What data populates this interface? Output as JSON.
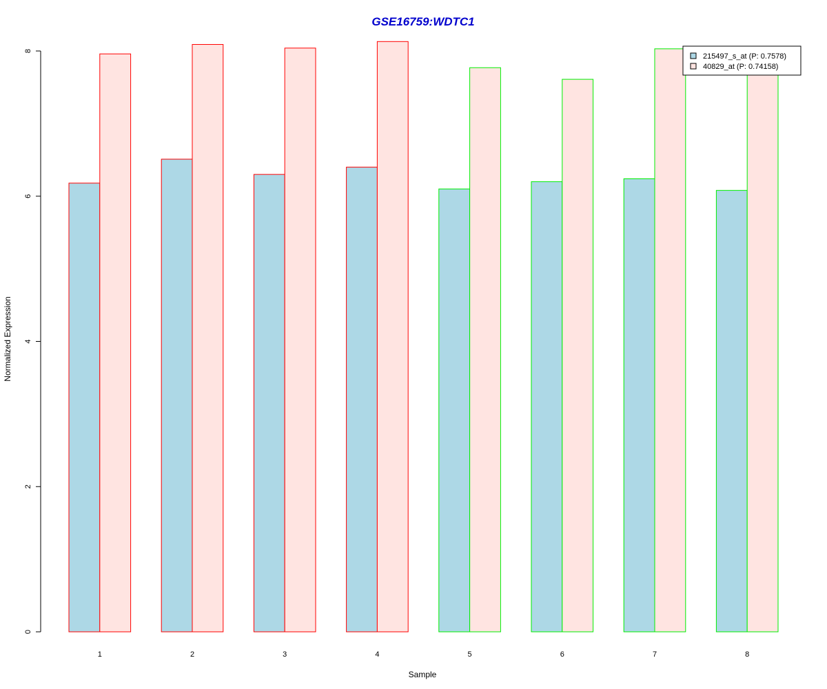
{
  "chart_data": {
    "type": "bar",
    "title": "GSE16759:WDTC1",
    "xlabel": "Sample",
    "ylabel": "Normalized Expression",
    "categories": [
      "1",
      "2",
      "3",
      "4",
      "5",
      "6",
      "7",
      "8"
    ],
    "yticks": [
      "0",
      "2",
      "4",
      "6",
      "8"
    ],
    "ylim": [
      0,
      8
    ],
    "grid": false,
    "legend_position": "top-right",
    "series": [
      {
        "name": "215497_s_at (P: 0.7578)",
        "fill": "#add8e6",
        "values": [
          6.18,
          6.51,
          6.3,
          6.4,
          6.1,
          6.2,
          6.24,
          6.08
        ]
      },
      {
        "name": "40829_at (P: 0.74158)",
        "fill": "#ffe4e1",
        "values": [
          7.96,
          8.09,
          8.04,
          8.13,
          7.77,
          7.61,
          8.03,
          7.7
        ]
      }
    ],
    "group_border_colors": [
      "#ff0000",
      "#ff0000",
      "#ff0000",
      "#ff0000",
      "#00ee00",
      "#00ee00",
      "#00ee00",
      "#00ee00"
    ],
    "title_color": "#0000cd"
  }
}
